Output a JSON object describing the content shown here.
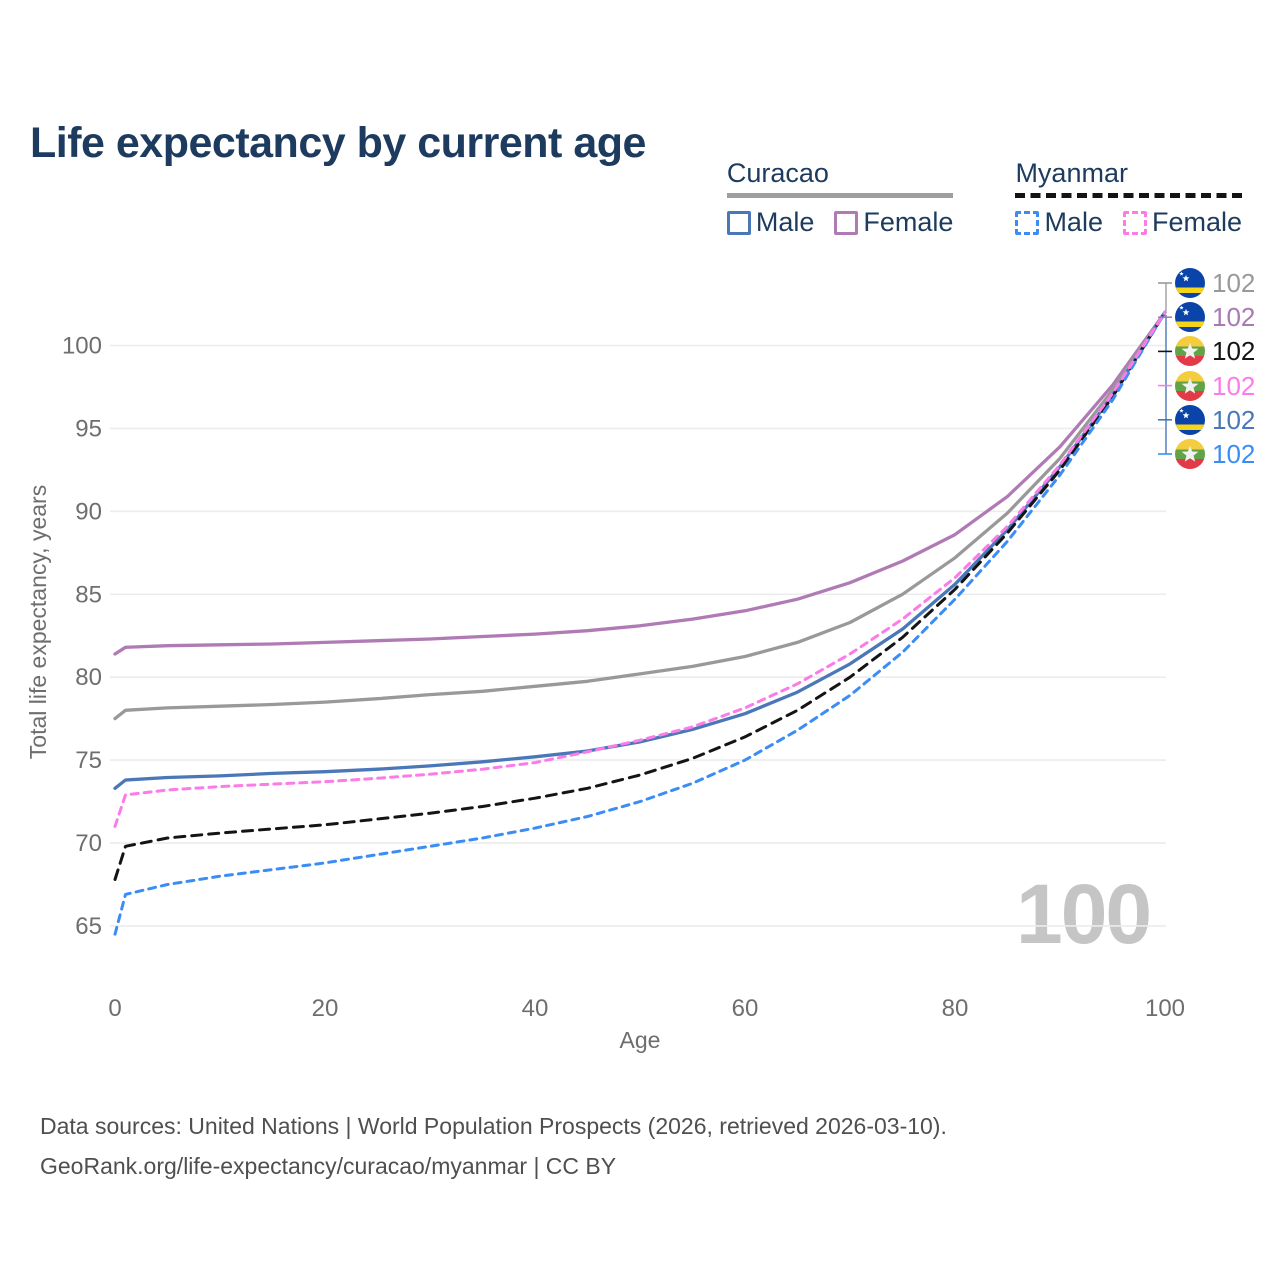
{
  "title": "Life expectancy by current age",
  "watermark": "100",
  "legend": {
    "groups": [
      {
        "name": "Curacao",
        "line_style": "solid",
        "line_color": "#9e9e9e",
        "items": [
          {
            "label": "Male",
            "color": "#4a77b8",
            "box_style": "solid"
          },
          {
            "label": "Female",
            "color": "#b07ab5",
            "box_style": "solid"
          }
        ]
      },
      {
        "name": "Myanmar",
        "line_style": "dashed",
        "line_color": "#141414",
        "items": [
          {
            "label": "Male",
            "color": "#3b8df5",
            "box_style": "dashed"
          },
          {
            "label": "Female",
            "color": "#fb7ce8",
            "box_style": "dashed"
          }
        ]
      }
    ]
  },
  "end_labels": [
    {
      "value": "102",
      "flag": "curacao",
      "color": "#999999"
    },
    {
      "value": "102",
      "flag": "curacao",
      "color": "#a87ab5"
    },
    {
      "value": "102",
      "flag": "myanmar",
      "color": "#141414"
    },
    {
      "value": "102",
      "flag": "myanmar",
      "color": "#fb7ce8"
    },
    {
      "value": "102",
      "flag": "curacao",
      "color": "#4a77b8"
    },
    {
      "value": "102",
      "flag": "myanmar",
      "color": "#3b8df5"
    }
  ],
  "footer": {
    "line1": "Data sources: United Nations | World Population Prospects (2026, retrieved 2026-03-10).",
    "line2": "GeoRank.org/life-expectancy/curacao/myanmar | CC BY"
  },
  "chart_data": {
    "type": "line",
    "title": "Life expectancy by current age",
    "xlabel": "Age",
    "ylabel": "Total life expectancy, years",
    "xlim": [
      0,
      100
    ],
    "ylim": [
      63.5,
      103
    ],
    "xticks": [
      0,
      20,
      40,
      60,
      80,
      100
    ],
    "yticks": [
      65,
      70,
      75,
      80,
      85,
      90,
      95,
      100
    ],
    "grid": true,
    "legend_position": "top-right",
    "x": [
      0,
      1,
      5,
      10,
      15,
      20,
      25,
      30,
      35,
      40,
      45,
      50,
      55,
      60,
      65,
      70,
      75,
      80,
      85,
      90,
      95,
      100
    ],
    "series": [
      {
        "id": "curacao-female",
        "name": "Curacao Female",
        "color": "#b07ab5",
        "dash": "solid",
        "values": [
          81.4,
          81.8,
          81.9,
          81.95,
          82.0,
          82.1,
          82.2,
          82.3,
          82.45,
          82.6,
          82.8,
          83.1,
          83.5,
          84.0,
          84.7,
          85.7,
          87.0,
          88.6,
          90.9,
          93.9,
          97.6,
          102
        ]
      },
      {
        "id": "curacao-all",
        "name": "Curacao",
        "color": "#999999",
        "dash": "solid",
        "values": [
          77.5,
          78.0,
          78.15,
          78.25,
          78.35,
          78.5,
          78.7,
          78.95,
          79.15,
          79.45,
          79.75,
          80.2,
          80.65,
          81.25,
          82.1,
          83.3,
          85.0,
          87.2,
          89.9,
          93.2,
          97.3,
          102
        ]
      },
      {
        "id": "curacao-male",
        "name": "Curacao Male",
        "color": "#4a77b8",
        "dash": "solid",
        "values": [
          73.3,
          73.8,
          73.95,
          74.05,
          74.2,
          74.3,
          74.45,
          74.65,
          74.9,
          75.2,
          75.55,
          76.1,
          76.85,
          77.8,
          79.1,
          80.8,
          82.9,
          85.6,
          88.9,
          92.7,
          97.0,
          102
        ]
      },
      {
        "id": "myanmar-all",
        "name": "Myanmar",
        "color": "#141414",
        "dash": "dashed",
        "values": [
          67.8,
          69.8,
          70.3,
          70.6,
          70.85,
          71.1,
          71.45,
          71.8,
          72.2,
          72.7,
          73.3,
          74.1,
          75.1,
          76.4,
          78.0,
          80.0,
          82.4,
          85.3,
          88.7,
          92.5,
          96.9,
          102
        ]
      },
      {
        "id": "myanmar-male",
        "name": "Myanmar Male",
        "color": "#3b8df5",
        "dash": "dashed",
        "values": [
          64.5,
          66.9,
          67.5,
          68.0,
          68.4,
          68.8,
          69.3,
          69.8,
          70.3,
          70.9,
          71.6,
          72.5,
          73.6,
          75.0,
          76.8,
          78.9,
          81.5,
          84.7,
          88.2,
          92.2,
          96.7,
          102
        ]
      },
      {
        "id": "myanmar-female",
        "name": "Myanmar Female",
        "color": "#fb7ce8",
        "dash": "dashed",
        "values": [
          71.0,
          72.9,
          73.2,
          73.4,
          73.55,
          73.7,
          73.9,
          74.15,
          74.45,
          74.85,
          75.5,
          76.2,
          77.0,
          78.15,
          79.6,
          81.4,
          83.5,
          86.0,
          89.1,
          92.8,
          97.1,
          102
        ]
      }
    ]
  }
}
